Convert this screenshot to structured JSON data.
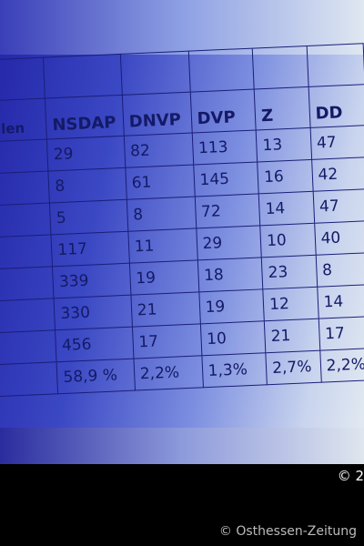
{
  "table": {
    "header": [
      "ahlen",
      "NSDAP",
      "DNVP",
      "DVP",
      "Z",
      "DD"
    ],
    "rows": [
      [
        29,
        82,
        113,
        13,
        47
      ],
      [
        8,
        61,
        145,
        16,
        42
      ],
      [
        5,
        8,
        72,
        14,
        47
      ],
      [
        117,
        11,
        29,
        10,
        40
      ],
      [
        339,
        19,
        18,
        23,
        8
      ],
      [
        330,
        21,
        19,
        12,
        14
      ],
      [
        456,
        17,
        10,
        21,
        17
      ],
      [
        "58,9 %",
        "2,2%",
        "1,3%",
        "2,7%",
        "2,2%"
      ]
    ]
  },
  "footer": {
    "watermark": "© 2",
    "credit": "© Osthessen-Zeitung"
  }
}
